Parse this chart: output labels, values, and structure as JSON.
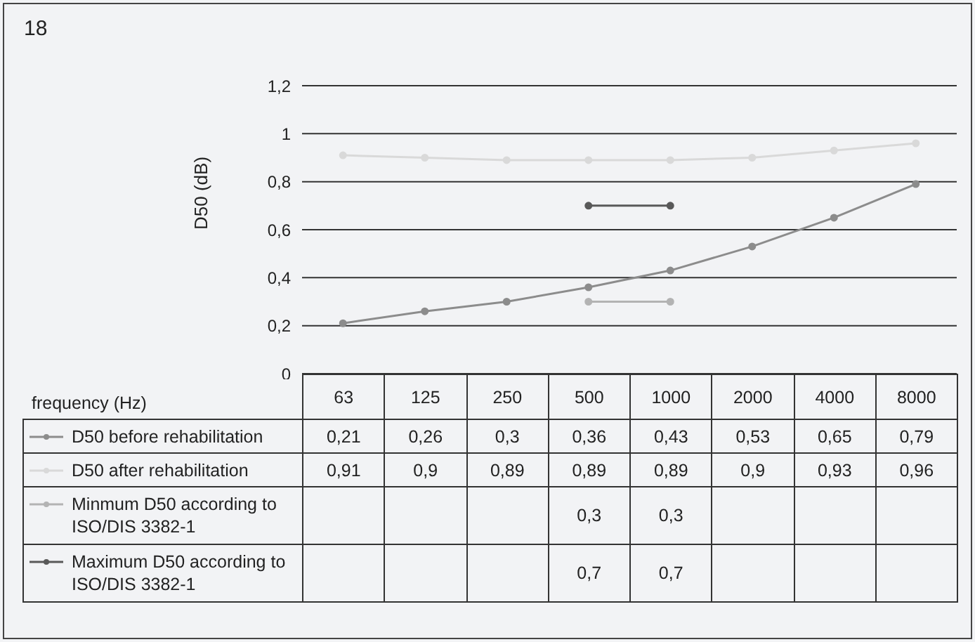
{
  "chart_data": {
    "type": "line",
    "title": "18",
    "ylabel": "D50 (dB)",
    "annotations": [
      "frequency (Hz)"
    ],
    "categories": [
      "63",
      "125",
      "250",
      "500",
      "1000",
      "2000",
      "4000",
      "8000"
    ],
    "series": [
      {
        "name": "D50 before rehabilitation",
        "color": "#8c8c8c",
        "values": [
          0.21,
          0.26,
          0.3,
          0.36,
          0.43,
          0.53,
          0.65,
          0.79
        ],
        "value_labels": [
          "0,21",
          "0,26",
          "0,3",
          "0,36",
          "0,43",
          "0,53",
          "0,65",
          "0,79"
        ]
      },
      {
        "name": "D50 after rehabilitation",
        "color": "#d9d9d9",
        "values": [
          0.91,
          0.9,
          0.89,
          0.89,
          0.89,
          0.9,
          0.93,
          0.96
        ],
        "value_labels": [
          "0,91",
          "0,9",
          "0,89",
          "0,89",
          "0,89",
          "0,9",
          "0,93",
          "0,96"
        ]
      },
      {
        "name": "Minmum D50 according to ISO/DIS 3382-1",
        "color": "#b3b3b3",
        "values": [
          null,
          null,
          null,
          0.3,
          0.3,
          null,
          null,
          null
        ],
        "value_labels": [
          null,
          null,
          null,
          "0,3",
          "0,3",
          null,
          null,
          null
        ]
      },
      {
        "name": "Maximum D50 according to ISO/DIS 3382-1",
        "color": "#595959",
        "values": [
          null,
          null,
          null,
          0.7,
          0.7,
          null,
          null,
          null
        ],
        "value_labels": [
          null,
          null,
          null,
          "0,7",
          "0,7",
          null,
          null,
          null
        ]
      }
    ],
    "ylim": [
      0,
      1.2
    ],
    "yticks": [
      0,
      {
        "value": 0.2,
        "label": "0,2"
      },
      {
        "value": 0.4,
        "label": "0,4"
      },
      {
        "value": 0.6,
        "label": "0,6"
      },
      {
        "value": 0.8,
        "label": "0,8"
      },
      1,
      {
        "value": 1.2,
        "label": "1,2"
      }
    ],
    "grid": "y",
    "legend": "bottom",
    "marker": "circle",
    "line_style": "solid"
  }
}
